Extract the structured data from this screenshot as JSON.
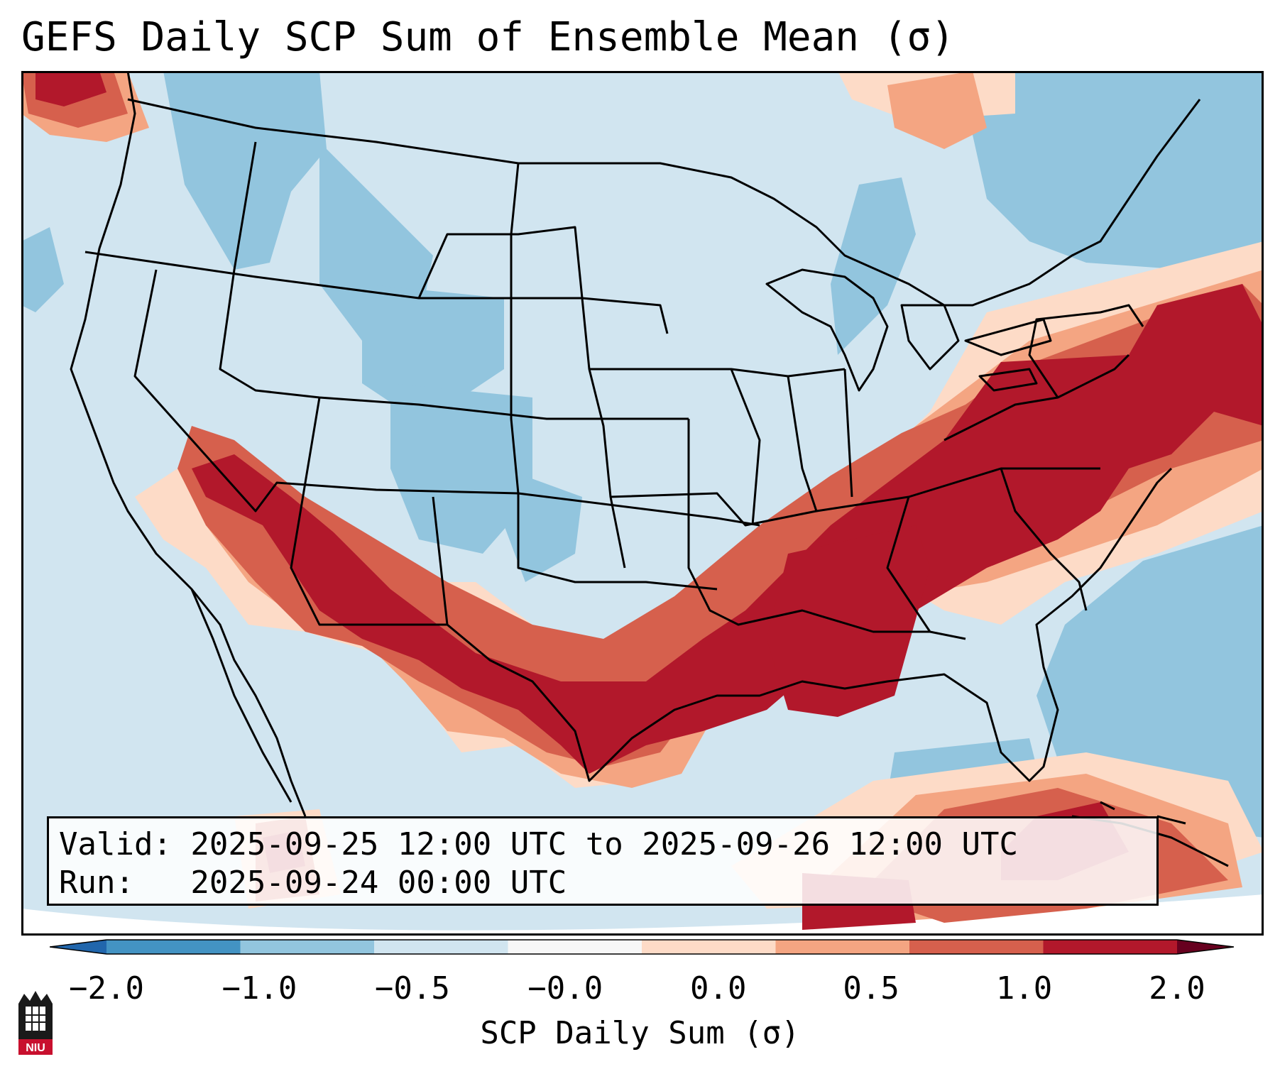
{
  "title": "GEFS Daily SCP Sum of Ensemble Mean (σ)",
  "info": {
    "valid": "Valid: 2025-09-25 12:00 UTC to 2025-09-26 12:00 UTC",
    "run": "Run:   2025-09-24 00:00 UTC"
  },
  "colorbar": {
    "label": "SCP Daily Sum (σ)",
    "ticks": [
      "−2.0",
      "−1.0",
      "−0.5",
      "−0.0",
      "0.0",
      "0.5",
      "1.0",
      "2.0"
    ],
    "colors": [
      "#4393c3",
      "#92c5de",
      "#d1e5f0",
      "#f7f7f7",
      "#fddbc7",
      "#f4a582",
      "#d6604d",
      "#b2182b"
    ],
    "under_color": "#2166ac",
    "over_color": "#67001f"
  },
  "logo": {
    "text": "NIU",
    "color": "#c8102e"
  },
  "palette": {
    "background": "#d1e5f0",
    "light_blue": "#92c5de",
    "light_red": "#fddbc7",
    "mid_red": "#f4a582",
    "red": "#d6604d",
    "dark_red": "#b2182b"
  }
}
